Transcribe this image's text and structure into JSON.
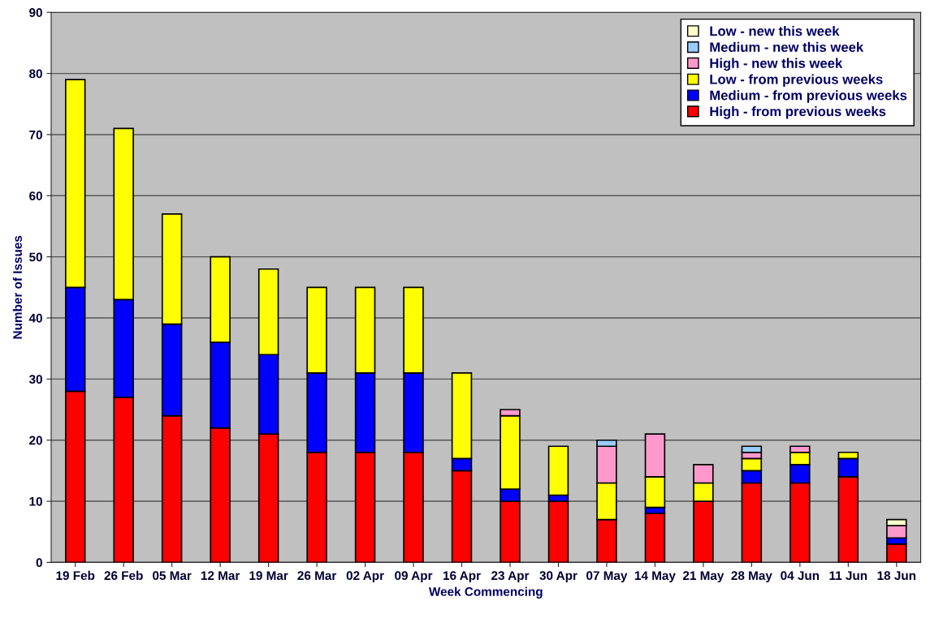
{
  "chart_data": {
    "type": "bar",
    "stacked": true,
    "xlabel": "Week Commencing",
    "ylabel": "Number of Issues",
    "categories": [
      "19 Feb",
      "26 Feb",
      "05 Mar",
      "12 Mar",
      "19 Mar",
      "26 Mar",
      "02 Apr",
      "09 Apr",
      "16 Apr",
      "23 Apr",
      "30 Apr",
      "07 May",
      "14 May",
      "21 May",
      "28 May",
      "04 Jun",
      "11 Jun",
      "18 Jun"
    ],
    "series": [
      {
        "name": "High - from previous weeks",
        "color": "#ff0000",
        "values": [
          28,
          27,
          24,
          22,
          21,
          18,
          18,
          18,
          15,
          10,
          10,
          7,
          8,
          10,
          13,
          13,
          14,
          3
        ]
      },
      {
        "name": "Medium - from previous weeks",
        "color": "#0000ff",
        "values": [
          17,
          16,
          15,
          14,
          13,
          13,
          13,
          13,
          2,
          2,
          1,
          0,
          1,
          0,
          2,
          3,
          3,
          1
        ]
      },
      {
        "name": "Low - from previous weeks",
        "color": "#ffff00",
        "values": [
          34,
          28,
          18,
          14,
          14,
          14,
          14,
          14,
          14,
          12,
          8,
          6,
          5,
          3,
          2,
          2,
          1,
          0
        ]
      },
      {
        "name": "High - new this week",
        "color": "#ff99cc",
        "values": [
          0,
          0,
          0,
          0,
          0,
          0,
          0,
          0,
          0,
          1,
          0,
          6,
          7,
          3,
          1,
          1,
          0,
          2
        ]
      },
      {
        "name": "Medium - new this week",
        "color": "#99ccff",
        "values": [
          0,
          0,
          0,
          0,
          0,
          0,
          0,
          0,
          0,
          0,
          0,
          1,
          0,
          0,
          1,
          0,
          0,
          0
        ]
      },
      {
        "name": "Low - new this week",
        "color": "#ffffcc",
        "values": [
          0,
          0,
          0,
          0,
          0,
          0,
          0,
          0,
          0,
          0,
          0,
          0,
          0,
          0,
          0,
          0,
          0,
          1
        ]
      }
    ],
    "ylim": [
      0,
      90
    ],
    "yticks": [
      0,
      10,
      20,
      30,
      40,
      50,
      60,
      70,
      80,
      90
    ],
    "grid": "y",
    "legend": "top right"
  }
}
